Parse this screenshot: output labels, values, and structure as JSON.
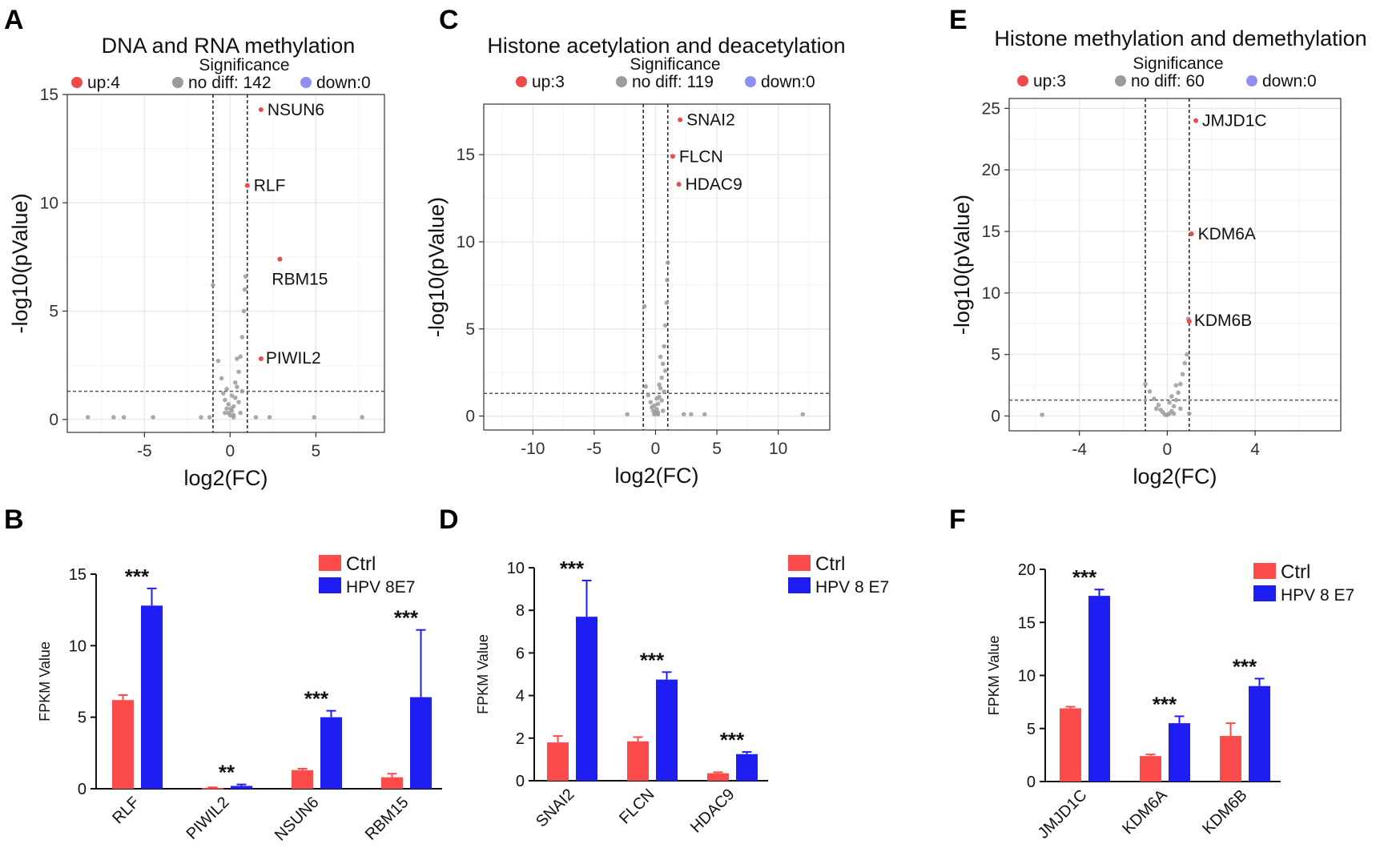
{
  "colors": {
    "up": "#ef4a4a",
    "nodiff": "#9b9b9b",
    "down": "#8f8ff2",
    "ctrl": "#fb4b4b",
    "hpv": "#1e1ef2"
  },
  "chart_data": [
    {
      "panel": "A",
      "type": "scatter",
      "title": "DNA and RNA methylation",
      "legend": {
        "title": "Significance",
        "up": "up:4",
        "nodiff": "no diff: 142",
        "down": "down:0"
      },
      "xlabel": "log2(FC)",
      "ylabel": "-log10(pValue)",
      "xlim": [
        -9.5,
        9
      ],
      "ylim": [
        -0.6,
        15
      ],
      "xticks": [
        -5,
        0,
        5
      ],
      "yticks": [
        0,
        5,
        10,
        15
      ],
      "vlines": [
        -1,
        1
      ],
      "hline": 1.3,
      "up_points": [
        {
          "label": "NSUN6",
          "x": 1.8,
          "y": 14.3
        },
        {
          "label": "RLF",
          "x": 1.0,
          "y": 10.8
        },
        {
          "label": "RBM15",
          "x": 2.9,
          "y": 7.4
        },
        {
          "label": "PIWIL2",
          "x": 1.8,
          "y": 2.8
        }
      ],
      "nodiff_points": [
        [
          -8.3,
          0.1
        ],
        [
          -6.8,
          0.1
        ],
        [
          -6.2,
          0.1
        ],
        [
          -4.5,
          0.1
        ],
        [
          -1.7,
          0.1
        ],
        [
          -1.2,
          0.1
        ],
        [
          -1.0,
          6.2
        ],
        [
          -0.7,
          2.7
        ],
        [
          -0.5,
          1.9
        ],
        [
          -0.4,
          1.2
        ],
        [
          -0.3,
          0.9
        ],
        [
          -0.2,
          0.5
        ],
        [
          -0.1,
          0.3
        ],
        [
          0.0,
          0.2
        ],
        [
          0.1,
          0.4
        ],
        [
          0.2,
          0.6
        ],
        [
          0.3,
          1.0
        ],
        [
          0.4,
          1.5
        ],
        [
          0.5,
          2.2
        ],
        [
          0.6,
          2.9
        ],
        [
          0.7,
          3.8
        ],
        [
          0.8,
          5.0
        ],
        [
          0.85,
          6.0
        ],
        [
          0.9,
          6.6
        ],
        [
          0.6,
          0.3
        ],
        [
          0.2,
          0.1
        ],
        [
          1.5,
          0.1
        ],
        [
          2.3,
          0.1
        ],
        [
          4.9,
          0.1
        ],
        [
          7.7,
          0.1
        ],
        [
          0.4,
          2.8
        ],
        [
          0.3,
          1.7
        ],
        [
          0.1,
          1.1
        ],
        [
          -0.1,
          0.7
        ],
        [
          -0.2,
          1.4
        ],
        [
          0.5,
          0.8
        ],
        [
          0.7,
          1.3
        ],
        [
          0.2,
          0.2
        ],
        [
          -0.3,
          0.3
        ],
        [
          0.05,
          0.5
        ]
      ]
    },
    {
      "panel": "C",
      "type": "scatter",
      "title": "Histone acetylation and deacetylation",
      "legend": {
        "title": "Significance",
        "up": "up:3",
        "nodiff": "no diff: 119",
        "down": "down:0"
      },
      "xlabel": "log2(FC)",
      "ylabel": "-log10(pValue)",
      "xlim": [
        -14,
        14.2
      ],
      "ylim": [
        -0.8,
        17.9
      ],
      "xticks": [
        -10,
        -5,
        0,
        5,
        10
      ],
      "yticks": [
        0,
        5,
        10,
        15
      ],
      "vlines": [
        -1,
        1
      ],
      "hline": 1.3,
      "up_points": [
        {
          "label": "SNAI2",
          "x": 2.0,
          "y": 17.0
        },
        {
          "label": "FLCN",
          "x": 1.4,
          "y": 14.9
        },
        {
          "label": "HDAC9",
          "x": 1.9,
          "y": 13.3
        }
      ],
      "nodiff_points": [
        [
          -2.3,
          0.1
        ],
        [
          -0.9,
          6.3
        ],
        [
          -0.8,
          1.7
        ],
        [
          -0.6,
          1.2
        ],
        [
          -0.4,
          0.8
        ],
        [
          -0.3,
          0.5
        ],
        [
          -0.2,
          0.3
        ],
        [
          -0.1,
          0.1
        ],
        [
          0.0,
          0.2
        ],
        [
          0.1,
          0.4
        ],
        [
          0.2,
          0.7
        ],
        [
          0.3,
          1.1
        ],
        [
          0.4,
          1.6
        ],
        [
          0.5,
          2.2
        ],
        [
          0.6,
          3.0
        ],
        [
          0.7,
          4.0
        ],
        [
          0.8,
          5.2
        ],
        [
          0.9,
          6.5
        ],
        [
          0.95,
          7.8
        ],
        [
          1.0,
          8.8
        ],
        [
          0.6,
          0.3
        ],
        [
          0.2,
          0.1
        ],
        [
          2.3,
          0.1
        ],
        [
          2.9,
          0.1
        ],
        [
          4.0,
          0.1
        ],
        [
          12.0,
          0.1
        ],
        [
          0.4,
          3.4
        ],
        [
          0.3,
          1.8
        ],
        [
          0.1,
          1.0
        ],
        [
          -0.1,
          0.6
        ],
        [
          0.5,
          0.9
        ],
        [
          0.7,
          1.4
        ],
        [
          0.8,
          2.6
        ],
        [
          0.2,
          0.2
        ]
      ]
    },
    {
      "panel": "E",
      "type": "scatter",
      "title": "Histone methylation and demethylation",
      "legend": {
        "title": "Significance",
        "up": "up:3",
        "nodiff": "no diff: 60",
        "down": "down:0"
      },
      "xlabel": "log2(FC)",
      "ylabel": "-log10(pValue)",
      "xlim": [
        -7.2,
        7.9
      ],
      "ylim": [
        -1.2,
        25.8
      ],
      "xticks": [
        -4,
        0,
        4
      ],
      "yticks": [
        0,
        5,
        10,
        15,
        20,
        25
      ],
      "vlines": [
        -1,
        1
      ],
      "hline": 1.3,
      "up_points": [
        {
          "label": "JMJD1C",
          "x": 1.3,
          "y": 24.0
        },
        {
          "label": "KDM6A",
          "x": 1.1,
          "y": 14.8
        },
        {
          "label": "KDM6B",
          "x": 1.0,
          "y": 7.7
        }
      ],
      "nodiff_points": [
        [
          -5.7,
          0.1
        ],
        [
          -1.0,
          2.6
        ],
        [
          -0.8,
          2.0
        ],
        [
          -0.6,
          1.4
        ],
        [
          -0.4,
          0.9
        ],
        [
          -0.3,
          0.5
        ],
        [
          -0.2,
          0.3
        ],
        [
          -0.1,
          0.1
        ],
        [
          0.0,
          0.1
        ],
        [
          0.1,
          0.2
        ],
        [
          0.2,
          0.4
        ],
        [
          0.3,
          0.8
        ],
        [
          0.4,
          1.3
        ],
        [
          0.5,
          1.9
        ],
        [
          0.6,
          2.6
        ],
        [
          0.7,
          3.4
        ],
        [
          0.8,
          4.3
        ],
        [
          0.9,
          5.0
        ],
        [
          0.95,
          7.9
        ],
        [
          1.0,
          0.2
        ],
        [
          0.4,
          2.5
        ],
        [
          0.2,
          1.6
        ],
        [
          0.1,
          1.1
        ],
        [
          -0.5,
          0.6
        ],
        [
          0.6,
          0.6
        ],
        [
          0.3,
          0.2
        ]
      ]
    },
    {
      "panel": "B",
      "type": "bar",
      "categories": [
        "RLF",
        "PIWIL2",
        "NSUN6",
        "RBM15"
      ],
      "series": [
        {
          "name": "Ctrl",
          "values": [
            6.2,
            0.05,
            1.3,
            0.8
          ],
          "errors": [
            0.35,
            0.05,
            0.1,
            0.25
          ]
        },
        {
          "name": "HPV 8E7",
          "values": [
            12.8,
            0.2,
            5.0,
            6.4
          ],
          "errors": [
            1.2,
            0.1,
            0.45,
            4.7
          ]
        }
      ],
      "significance": [
        "***",
        "**",
        "***",
        "***"
      ],
      "ylabel": "FPKM Value",
      "ylim": [
        0,
        15
      ],
      "yticks": [
        0,
        5,
        10,
        15
      ]
    },
    {
      "panel": "D",
      "type": "bar",
      "categories": [
        "SNAI2",
        "FLCN",
        "HDAC9"
      ],
      "series": [
        {
          "name": "Ctrl",
          "values": [
            1.8,
            1.85,
            0.35
          ],
          "errors": [
            0.3,
            0.2,
            0.05
          ]
        },
        {
          "name": "HPV 8 E7",
          "values": [
            7.7,
            4.75,
            1.25
          ],
          "errors": [
            1.7,
            0.35,
            0.1
          ]
        }
      ],
      "significance": [
        "***",
        "***",
        "***"
      ],
      "ylabel": "FPKM Value",
      "ylim": [
        0,
        10
      ],
      "yticks": [
        0,
        2,
        4,
        6,
        8,
        10
      ]
    },
    {
      "panel": "F",
      "type": "bar",
      "categories": [
        "JMJD1C",
        "KDM6A",
        "KDM6B"
      ],
      "series": [
        {
          "name": "Ctrl",
          "values": [
            6.9,
            2.4,
            4.3
          ],
          "errors": [
            0.15,
            0.15,
            1.2
          ]
        },
        {
          "name": "HPV 8 E7",
          "values": [
            17.5,
            5.5,
            9.0
          ],
          "errors": [
            0.6,
            0.65,
            0.7
          ]
        }
      ],
      "significance": [
        "***",
        "***",
        "***"
      ],
      "ylabel": "FPKM Value",
      "ylim": [
        0,
        20
      ],
      "yticks": [
        0,
        5,
        10,
        15,
        20
      ]
    }
  ]
}
